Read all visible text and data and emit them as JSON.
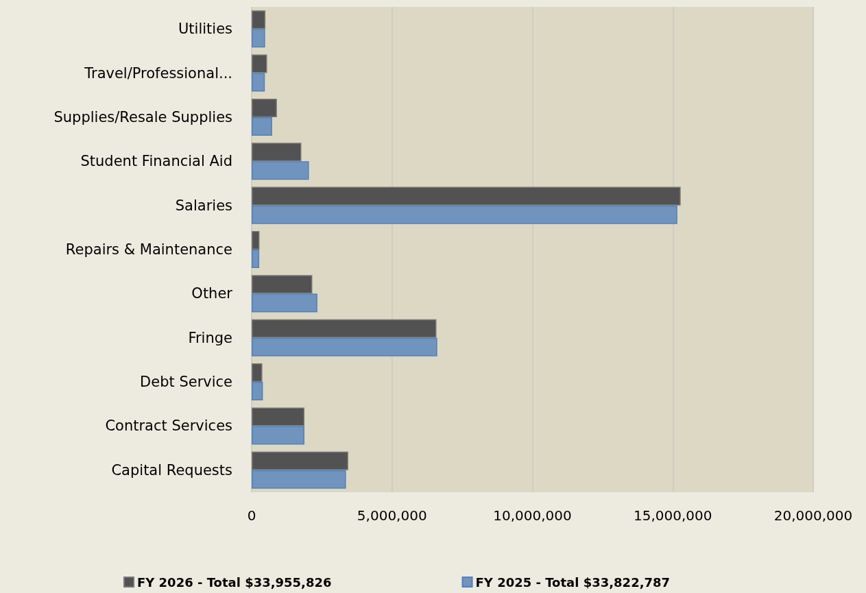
{
  "chart_data": {
    "type": "bar",
    "orientation": "horizontal",
    "categories": [
      "Utilities",
      "Travel/Professional...",
      "Supplies/Resale Supplies",
      "Student Financial Aid",
      "Salaries",
      "Repairs & Maintenance",
      "Other",
      "Fringe",
      "Debt Service",
      "Contract Services",
      "Capital Requests"
    ],
    "series": [
      {
        "name": "FY 2026 - Total $33,955,826",
        "color": "#525252",
        "values": [
          490000,
          550000,
          900000,
          1770000,
          15280000,
          280000,
          2160000,
          6580000,
          380000,
          1880000,
          3440000
        ]
      },
      {
        "name": "FY 2025 - Total $33,822,787",
        "color": "#7094bd",
        "values": [
          480000,
          470000,
          730000,
          2040000,
          15160000,
          270000,
          2340000,
          6610000,
          400000,
          1880000,
          3360000
        ]
      }
    ],
    "xlim": [
      0,
      20000000
    ],
    "xticks": [
      {
        "value": 0,
        "label": "0"
      },
      {
        "value": 5000000,
        "label": "5,000,000"
      },
      {
        "value": 10000000,
        "label": "10,000,000"
      },
      {
        "value": 15000000,
        "label": "15,000,000"
      },
      {
        "value": 20000000,
        "label": "20,000,000"
      }
    ],
    "grid": "x",
    "legend": "bottom"
  }
}
